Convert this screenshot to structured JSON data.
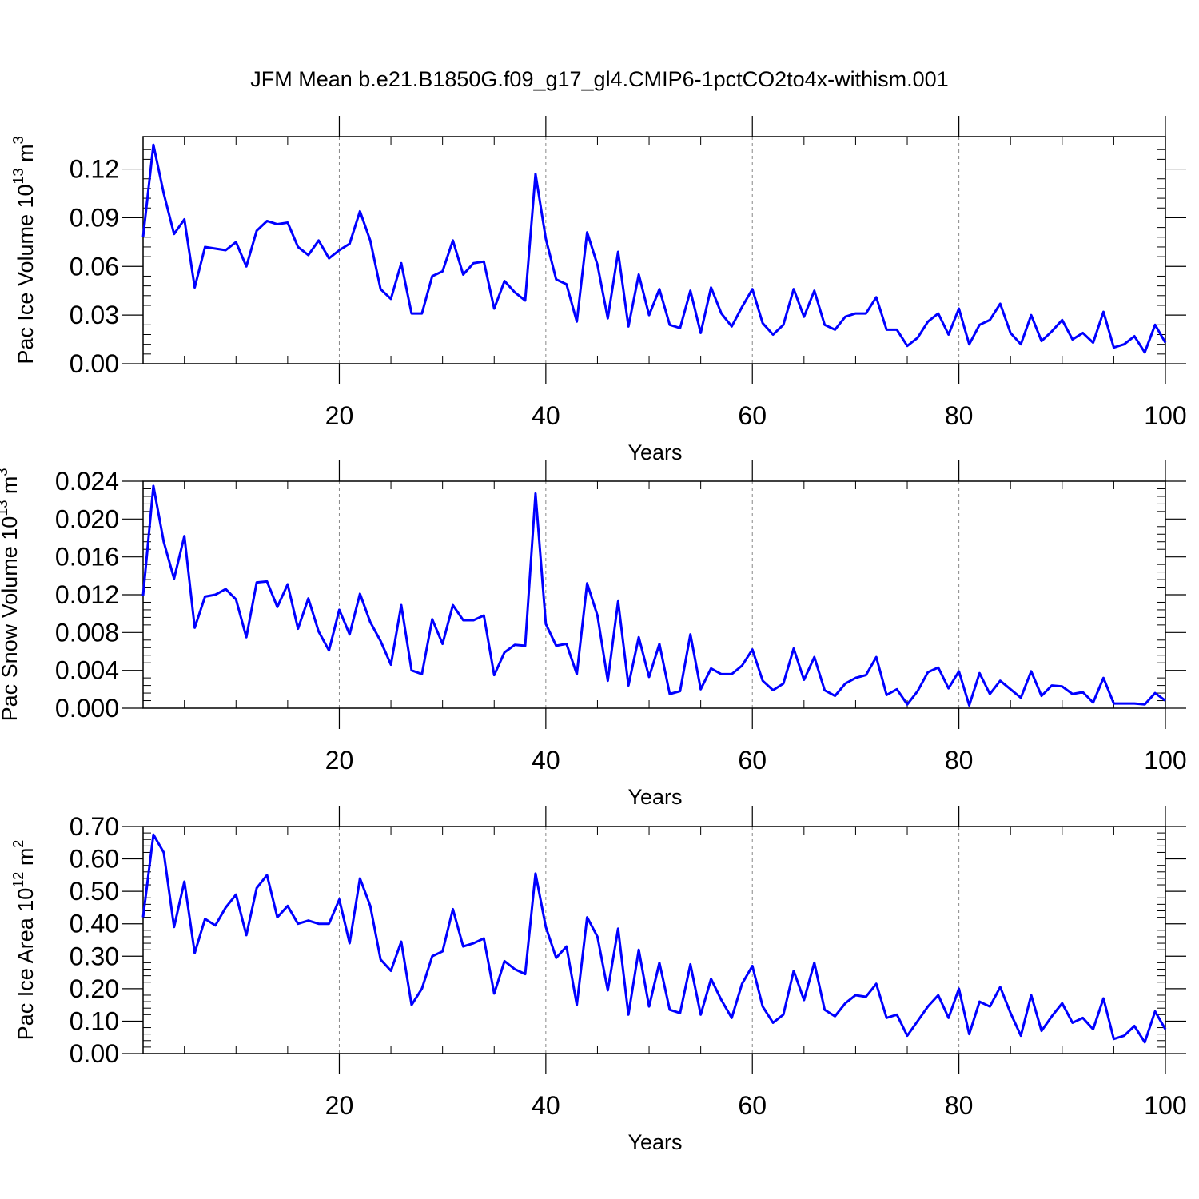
{
  "figure": {
    "title": "JFM Mean b.e21.B1850G.f09_g17_gl4.CMIP6-1pctCO2to4x-withism.001"
  },
  "chart_data": [
    {
      "type": "line",
      "xlabel": "Years",
      "ylabel": {
        "prefix": "Pac Ice Volume 10",
        "exp": "13",
        "unit": " m",
        "unit_exp": "3"
      },
      "xlim": [
        1,
        100
      ],
      "ylim": [
        0.0,
        0.14
      ],
      "xticks": [
        20,
        40,
        60,
        80,
        100
      ],
      "xtick_labels": [
        "20",
        "40",
        "60",
        "80",
        "100"
      ],
      "yticks": [
        0.0,
        0.03,
        0.06,
        0.09,
        0.12
      ],
      "ytick_labels": [
        "0.00",
        "0.03",
        "0.06",
        "0.09",
        "0.12"
      ],
      "grid": "vertical dashed at major x ticks",
      "line_color": "#0000ff",
      "series": [
        {
          "x_start": 1,
          "values": [
            0.078,
            0.135,
            0.105,
            0.08,
            0.089,
            0.047,
            0.072,
            0.071,
            0.07,
            0.075,
            0.06,
            0.082,
            0.088,
            0.086,
            0.087,
            0.072,
            0.067,
            0.076,
            0.065,
            0.07,
            0.074,
            0.094,
            0.076,
            0.046,
            0.04,
            0.062,
            0.031,
            0.031,
            0.054,
            0.057,
            0.076,
            0.055,
            0.062,
            0.063,
            0.034,
            0.051,
            0.044,
            0.039,
            0.117,
            0.077,
            0.052,
            0.049,
            0.026,
            0.081,
            0.061,
            0.028,
            0.069,
            0.023,
            0.055,
            0.03,
            0.046,
            0.024,
            0.022,
            0.045,
            0.019,
            0.047,
            0.031,
            0.023,
            0.035,
            0.046,
            0.025,
            0.018,
            0.024,
            0.046,
            0.029,
            0.045,
            0.024,
            0.021,
            0.029,
            0.031,
            0.031,
            0.041,
            0.021,
            0.021,
            0.011,
            0.016,
            0.026,
            0.031,
            0.018,
            0.034,
            0.012,
            0.024,
            0.027,
            0.037,
            0.019,
            0.012,
            0.03,
            0.014,
            0.02,
            0.027,
            0.015,
            0.019,
            0.013,
            0.032,
            0.01,
            0.012,
            0.017,
            0.007,
            0.024,
            0.013
          ]
        }
      ]
    },
    {
      "type": "line",
      "xlabel": "Years",
      "ylabel": {
        "prefix": "Pac Snow Volume 10",
        "exp": "13",
        "unit": " m",
        "unit_exp": "3"
      },
      "xlim": [
        1,
        100
      ],
      "ylim": [
        0.0,
        0.024
      ],
      "xticks": [
        20,
        40,
        60,
        80,
        100
      ],
      "xtick_labels": [
        "20",
        "40",
        "60",
        "80",
        "100"
      ],
      "yticks": [
        0.0,
        0.004,
        0.008,
        0.012,
        0.016,
        0.02,
        0.024
      ],
      "ytick_labels": [
        "0.000",
        "0.004",
        "0.008",
        "0.012",
        "0.016",
        "0.020",
        "0.024"
      ],
      "grid": "vertical dashed at major x ticks",
      "line_color": "#0000ff",
      "series": [
        {
          "x_start": 1,
          "values": [
            0.0119,
            0.0235,
            0.0176,
            0.0137,
            0.0182,
            0.0085,
            0.0118,
            0.012,
            0.0126,
            0.0115,
            0.0075,
            0.0133,
            0.0134,
            0.0107,
            0.0131,
            0.0084,
            0.0116,
            0.0081,
            0.0061,
            0.0104,
            0.0078,
            0.0121,
            0.0091,
            0.0071,
            0.0046,
            0.0109,
            0.004,
            0.0036,
            0.0094,
            0.0068,
            0.0109,
            0.0093,
            0.0093,
            0.0098,
            0.0035,
            0.0059,
            0.0067,
            0.0066,
            0.0227,
            0.0089,
            0.0066,
            0.0068,
            0.0036,
            0.0132,
            0.0098,
            0.0029,
            0.0113,
            0.0024,
            0.0075,
            0.0033,
            0.0068,
            0.0015,
            0.0018,
            0.0078,
            0.002,
            0.0042,
            0.0036,
            0.0036,
            0.0045,
            0.0062,
            0.0029,
            0.0019,
            0.0026,
            0.0063,
            0.003,
            0.0054,
            0.0019,
            0.0013,
            0.0026,
            0.0032,
            0.0035,
            0.0054,
            0.0014,
            0.002,
            0.0004,
            0.0018,
            0.0038,
            0.0043,
            0.0021,
            0.0039,
            0.0003,
            0.0037,
            0.0015,
            0.0029,
            0.002,
            0.0011,
            0.0039,
            0.0013,
            0.0024,
            0.0023,
            0.0015,
            0.0017,
            0.0006,
            0.0032,
            0.0005,
            0.0005,
            0.0005,
            0.0004,
            0.0016,
            0.0008
          ]
        }
      ]
    },
    {
      "type": "line",
      "xlabel": "Years",
      "ylabel": {
        "prefix": "Pac Ice Area 10",
        "exp": "12",
        "unit": " m",
        "unit_exp": "2"
      },
      "xlim": [
        1,
        100
      ],
      "ylim": [
        0.0,
        0.7
      ],
      "xticks": [
        20,
        40,
        60,
        80,
        100
      ],
      "xtick_labels": [
        "20",
        "40",
        "60",
        "80",
        "100"
      ],
      "yticks": [
        0.0,
        0.1,
        0.2,
        0.3,
        0.4,
        0.5,
        0.6,
        0.7
      ],
      "ytick_labels": [
        "0.00",
        "0.10",
        "0.20",
        "0.30",
        "0.40",
        "0.50",
        "0.60",
        "0.70"
      ],
      "grid": "vertical dashed at major x ticks",
      "line_color": "#0000ff",
      "series": [
        {
          "x_start": 1,
          "values": [
            0.42,
            0.675,
            0.62,
            0.39,
            0.53,
            0.31,
            0.415,
            0.395,
            0.45,
            0.49,
            0.365,
            0.51,
            0.55,
            0.42,
            0.455,
            0.4,
            0.41,
            0.4,
            0.4,
            0.475,
            0.34,
            0.54,
            0.455,
            0.29,
            0.255,
            0.345,
            0.15,
            0.2,
            0.3,
            0.315,
            0.445,
            0.33,
            0.34,
            0.355,
            0.185,
            0.285,
            0.26,
            0.245,
            0.555,
            0.39,
            0.295,
            0.33,
            0.15,
            0.42,
            0.36,
            0.195,
            0.385,
            0.12,
            0.32,
            0.145,
            0.28,
            0.135,
            0.125,
            0.275,
            0.12,
            0.23,
            0.165,
            0.11,
            0.215,
            0.27,
            0.145,
            0.095,
            0.12,
            0.255,
            0.165,
            0.28,
            0.135,
            0.115,
            0.155,
            0.18,
            0.175,
            0.215,
            0.11,
            0.12,
            0.055,
            0.1,
            0.145,
            0.18,
            0.11,
            0.2,
            0.06,
            0.16,
            0.145,
            0.205,
            0.125,
            0.055,
            0.18,
            0.07,
            0.115,
            0.155,
            0.095,
            0.11,
            0.075,
            0.17,
            0.045,
            0.055,
            0.085,
            0.035,
            0.13,
            0.075
          ]
        }
      ]
    }
  ]
}
